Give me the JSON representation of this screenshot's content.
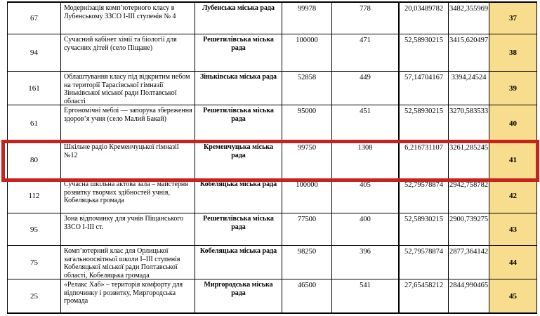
{
  "document": {
    "language": "uk",
    "description_columns": [
      "project_id",
      "project_name",
      "city_council",
      "budget",
      "votes",
      "coefficient",
      "score",
      "rank"
    ]
  },
  "colors": {
    "rank_column_bg": "#F7DD8D",
    "highlight_border": "#C8221C",
    "table_border": "#000000"
  },
  "table": {
    "rows": [
      {
        "id": "67",
        "project": "Модернізація комп’ютерного класу в Лубенському ЗЗСО І-ІІІ ступенів № 4",
        "council": "Лубенська міська рада",
        "budget": "99978",
        "votes": "778",
        "coefficient": "20,03489782",
        "score": "3482,355969",
        "rank": "37",
        "highlighted": false
      },
      {
        "id": "94",
        "project": "Сучасний кабінет хімії та біології для сучасних дітей (село Піщане)",
        "council": "Решетилівська міська рада",
        "budget": "100000",
        "votes": "471",
        "coefficient": "52,58930215",
        "score": "3415,620497",
        "rank": "38",
        "highlighted": false
      },
      {
        "id": "161",
        "project": "Облаштування класу під відкритим небом на території Тарасівської гімназії Зіньківської міської ради Полтавської області",
        "council": "Зіньківська міська рада",
        "budget": "52858",
        "votes": "449",
        "coefficient": "57,14704167",
        "score": "3394,24524",
        "rank": "39",
        "highlighted": false
      },
      {
        "id": "61",
        "project": "Ергономічні меблі — запорука збереження здоров’я учня (село Малий Бакай)",
        "council": "Решетилівська міська рада",
        "budget": "95000",
        "votes": "451",
        "coefficient": "52,58930215",
        "score": "3270,583533",
        "rank": "40",
        "highlighted": false
      },
      {
        "id": "80",
        "project": "Шкільне радіо Кременчуцької гімназії №12",
        "council": "Кременчуцька міська рада",
        "budget": "99750",
        "votes": "1308",
        "coefficient": "6,216731107",
        "score": "3261,285245",
        "rank": "41",
        "highlighted": true
      },
      {
        "id": "112",
        "project": "Сучасна шкільна актова зала – майстерня розвитку творчих здібностей учнів, Кобеляцька громада",
        "council": "Кобеляцька міська рада",
        "budget": "100000",
        "votes": "405",
        "coefficient": "52,79578874",
        "score": "2942,758782",
        "rank": "42",
        "highlighted": false
      },
      {
        "id": "95",
        "project": "Зона відпочинку для учнів Піщанського ЗЗСО І-ІІІ ст.",
        "council": "Решетилівська міська рада",
        "budget": "77500",
        "votes": "400",
        "coefficient": "52,58930215",
        "score": "2900,739275",
        "rank": "43",
        "highlighted": false
      },
      {
        "id": "75",
        "project": "Комп’ютерний клас для Орлицької загальноосвітньої школи І–ІІІ ступенів Кобеляцької міської ради Полтавської області, Кобеляцька громада",
        "council": "Кобеляцька міська рада",
        "budget": "98250",
        "votes": "396",
        "coefficient": "52,79578874",
        "score": "2877,364142",
        "rank": "44",
        "highlighted": false
      },
      {
        "id": "25",
        "project": "«Релакс Хаб» – територія комфорту для відпочинку і розвитку, Миргородська громада",
        "council": "Миргородська міська рада",
        "budget": "46500",
        "votes": "541",
        "coefficient": "27,65458212",
        "score": "2844,990465",
        "rank": "45",
        "highlighted": false
      }
    ]
  }
}
